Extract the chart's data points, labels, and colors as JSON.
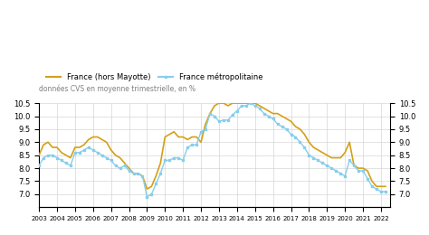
{
  "legend_france": "France (hors Mayotte)",
  "legend_metro": "France métropolitaine",
  "subtitle": "données CVS en moyenne trimestrielle, en %",
  "color_france": "#D4A017",
  "color_metro": "#87CEEB",
  "ylim": [
    6.5,
    10.5
  ],
  "yticks": [
    7.0,
    7.5,
    8.0,
    8.5,
    9.0,
    9.5,
    10.0,
    10.5
  ],
  "xtick_years": [
    2003,
    2004,
    2005,
    2006,
    2007,
    2008,
    2009,
    2010,
    2011,
    2012,
    2013,
    2014,
    2015,
    2016,
    2017,
    2018,
    2019,
    2020,
    2021,
    2022
  ],
  "france_x": [
    2003.0,
    2003.25,
    2003.5,
    2003.75,
    2004.0,
    2004.25,
    2004.5,
    2004.75,
    2005.0,
    2005.25,
    2005.5,
    2005.75,
    2006.0,
    2006.25,
    2006.5,
    2006.75,
    2007.0,
    2007.25,
    2007.5,
    2007.75,
    2008.0,
    2008.25,
    2008.5,
    2008.75,
    2009.0,
    2009.25,
    2009.5,
    2009.75,
    2010.0,
    2010.25,
    2010.5,
    2010.75,
    2011.0,
    2011.25,
    2011.5,
    2011.75,
    2012.0,
    2012.25,
    2012.5,
    2012.75,
    2013.0,
    2013.25,
    2013.5,
    2013.75,
    2014.0,
    2014.25,
    2014.5,
    2014.75,
    2015.0,
    2015.25,
    2015.5,
    2015.75,
    2016.0,
    2016.25,
    2016.5,
    2016.75,
    2017.0,
    2017.25,
    2017.5,
    2017.75,
    2018.0,
    2018.25,
    2018.5,
    2018.75,
    2019.0,
    2019.25,
    2019.5,
    2019.75,
    2020.0,
    2020.25,
    2020.5,
    2020.75,
    2021.0,
    2021.25,
    2021.5,
    2021.75,
    2022.0,
    2022.25
  ],
  "france_y": [
    8.5,
    8.9,
    9.0,
    8.8,
    8.8,
    8.6,
    8.5,
    8.4,
    8.8,
    8.8,
    8.9,
    9.1,
    9.2,
    9.2,
    9.1,
    9.0,
    8.7,
    8.5,
    8.4,
    8.2,
    8.0,
    7.8,
    7.8,
    7.7,
    7.2,
    7.3,
    7.7,
    8.2,
    9.2,
    9.3,
    9.4,
    9.2,
    9.2,
    9.1,
    9.2,
    9.2,
    9.0,
    9.7,
    10.1,
    10.4,
    10.5,
    10.5,
    10.4,
    10.5,
    10.5,
    10.5,
    10.5,
    10.5,
    10.5,
    10.4,
    10.3,
    10.2,
    10.1,
    10.1,
    10.0,
    9.9,
    9.8,
    9.6,
    9.5,
    9.3,
    9.0,
    8.8,
    8.7,
    8.6,
    8.5,
    8.4,
    8.4,
    8.4,
    8.6,
    9.0,
    8.1,
    8.0,
    8.0,
    7.9,
    7.5,
    7.3,
    7.3,
    7.3
  ],
  "metro_x": [
    2003.0,
    2003.25,
    2003.5,
    2003.75,
    2004.0,
    2004.25,
    2004.5,
    2004.75,
    2005.0,
    2005.25,
    2005.5,
    2005.75,
    2006.0,
    2006.25,
    2006.5,
    2006.75,
    2007.0,
    2007.25,
    2007.5,
    2007.75,
    2008.0,
    2008.25,
    2008.5,
    2008.75,
    2009.0,
    2009.25,
    2009.5,
    2009.75,
    2010.0,
    2010.25,
    2010.5,
    2010.75,
    2011.0,
    2011.25,
    2011.5,
    2011.75,
    2012.0,
    2012.25,
    2012.5,
    2012.75,
    2013.0,
    2013.25,
    2013.5,
    2013.75,
    2014.0,
    2014.25,
    2014.5,
    2014.75,
    2015.0,
    2015.25,
    2015.5,
    2015.75,
    2016.0,
    2016.25,
    2016.5,
    2016.75,
    2017.0,
    2017.25,
    2017.5,
    2017.75,
    2018.0,
    2018.25,
    2018.5,
    2018.75,
    2019.0,
    2019.25,
    2019.5,
    2019.75,
    2020.0,
    2020.25,
    2020.5,
    2020.75,
    2021.0,
    2021.25,
    2021.5,
    2021.75,
    2022.0,
    2022.25
  ],
  "metro_y": [
    8.1,
    8.4,
    8.5,
    8.5,
    8.4,
    8.3,
    8.2,
    8.1,
    8.6,
    8.6,
    8.7,
    8.8,
    8.7,
    8.6,
    8.5,
    8.4,
    8.3,
    8.1,
    8.0,
    8.1,
    7.9,
    7.8,
    7.8,
    7.7,
    6.9,
    7.0,
    7.4,
    7.8,
    8.3,
    8.3,
    8.4,
    8.4,
    8.3,
    8.8,
    8.9,
    8.9,
    9.4,
    9.5,
    10.1,
    10.0,
    9.8,
    9.85,
    9.85,
    10.05,
    10.2,
    10.4,
    10.4,
    10.5,
    10.4,
    10.3,
    10.1,
    10.0,
    9.9,
    9.7,
    9.6,
    9.5,
    9.3,
    9.2,
    9.0,
    8.8,
    8.5,
    8.4,
    8.3,
    8.2,
    8.1,
    8.0,
    7.9,
    7.8,
    7.7,
    8.3,
    8.1,
    7.9,
    7.9,
    7.6,
    7.3,
    7.2,
    7.1,
    7.1
  ]
}
